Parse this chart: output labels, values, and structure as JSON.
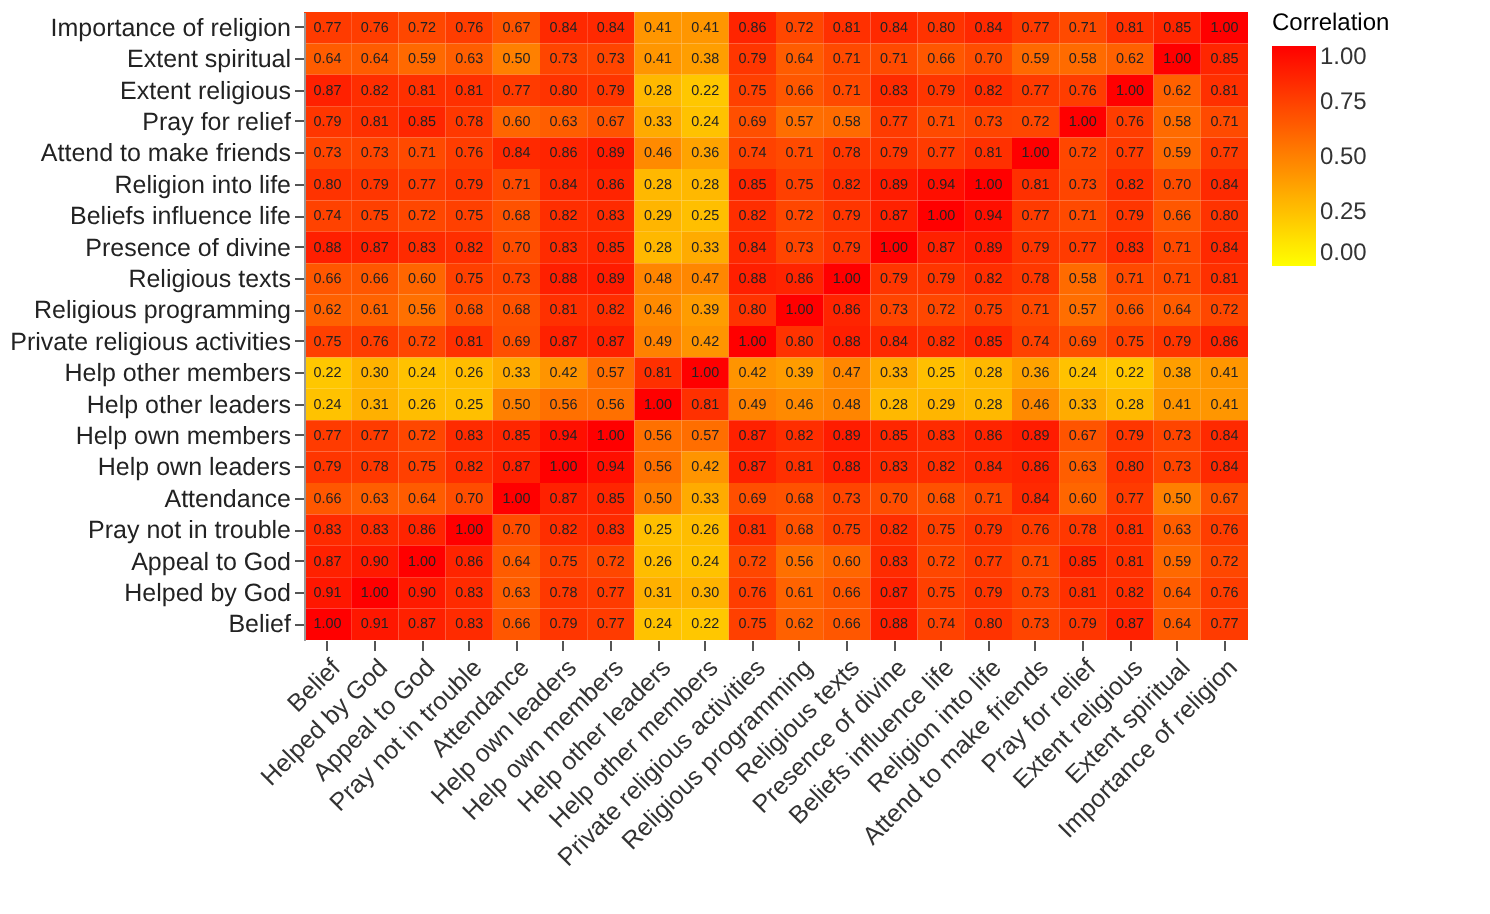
{
  "chart_data": {
    "type": "heatmap",
    "legend_title": "Correlation",
    "grid": false,
    "categories": [
      "Belief",
      "Helped by God",
      "Appeal to God",
      "Pray not in trouble",
      "Attendance",
      "Help own leaders",
      "Help own members",
      "Help other leaders",
      "Help other members",
      "Private religious activities",
      "Religious programming",
      "Religious texts",
      "Presence of divine",
      "Beliefs influence life",
      "Religion into life",
      "Attend to make friends",
      "Pray for relief",
      "Extent religious",
      "Extent spiritual",
      "Importance of religion"
    ],
    "y_categories": [
      "Importance of religion",
      "Extent spiritual",
      "Extent religious",
      "Pray for relief",
      "Attend to make friends",
      "Religion into life",
      "Beliefs influence life",
      "Presence of divine",
      "Religious texts",
      "Religious programming",
      "Private religious activities",
      "Help other members",
      "Help other leaders",
      "Help own members",
      "Help own leaders",
      "Attendance",
      "Pray not in trouble",
      "Appeal to God",
      "Helped by God",
      "Belief"
    ],
    "cells": [
      [
        0.77,
        0.76,
        0.72,
        0.76,
        0.67,
        0.84,
        0.84,
        0.41,
        0.41,
        0.86,
        0.72,
        0.81,
        0.84,
        0.8,
        0.84,
        0.77,
        0.71,
        0.81,
        0.85,
        1.0
      ],
      [
        0.64,
        0.64,
        0.59,
        0.63,
        0.5,
        0.73,
        0.73,
        0.41,
        0.38,
        0.79,
        0.64,
        0.71,
        0.71,
        0.66,
        0.7,
        0.59,
        0.58,
        0.62,
        1.0,
        0.85
      ],
      [
        0.87,
        0.82,
        0.81,
        0.81,
        0.77,
        0.8,
        0.79,
        0.28,
        0.22,
        0.75,
        0.66,
        0.71,
        0.83,
        0.79,
        0.82,
        0.77,
        0.76,
        1.0,
        0.62,
        0.81
      ],
      [
        0.79,
        0.81,
        0.85,
        0.78,
        0.6,
        0.63,
        0.67,
        0.33,
        0.24,
        0.69,
        0.57,
        0.58,
        0.77,
        0.71,
        0.73,
        0.72,
        1.0,
        0.76,
        0.58,
        0.71
      ],
      [
        0.73,
        0.73,
        0.71,
        0.76,
        0.84,
        0.86,
        0.89,
        0.46,
        0.36,
        0.74,
        0.71,
        0.78,
        0.79,
        0.77,
        0.81,
        1.0,
        0.72,
        0.77,
        0.59,
        0.77
      ],
      [
        0.8,
        0.79,
        0.77,
        0.79,
        0.71,
        0.84,
        0.86,
        0.28,
        0.28,
        0.85,
        0.75,
        0.82,
        0.89,
        0.94,
        1.0,
        0.81,
        0.73,
        0.82,
        0.7,
        0.84
      ],
      [
        0.74,
        0.75,
        0.72,
        0.75,
        0.68,
        0.82,
        0.83,
        0.29,
        0.25,
        0.82,
        0.72,
        0.79,
        0.87,
        1.0,
        0.94,
        0.77,
        0.71,
        0.79,
        0.66,
        0.8
      ],
      [
        0.88,
        0.87,
        0.83,
        0.82,
        0.7,
        0.83,
        0.85,
        0.28,
        0.33,
        0.84,
        0.73,
        0.79,
        1.0,
        0.87,
        0.89,
        0.79,
        0.77,
        0.83,
        0.71,
        0.84
      ],
      [
        0.66,
        0.66,
        0.6,
        0.75,
        0.73,
        0.88,
        0.89,
        0.48,
        0.47,
        0.88,
        0.86,
        1.0,
        0.79,
        0.79,
        0.82,
        0.78,
        0.58,
        0.71,
        0.71,
        0.81
      ],
      [
        0.62,
        0.61,
        0.56,
        0.68,
        0.68,
        0.81,
        0.82,
        0.46,
        0.39,
        0.8,
        1.0,
        0.86,
        0.73,
        0.72,
        0.75,
        0.71,
        0.57,
        0.66,
        0.64,
        0.72
      ],
      [
        0.75,
        0.76,
        0.72,
        0.81,
        0.69,
        0.87,
        0.87,
        0.49,
        0.42,
        1.0,
        0.8,
        0.88,
        0.84,
        0.82,
        0.85,
        0.74,
        0.69,
        0.75,
        0.79,
        0.86
      ],
      [
        0.22,
        0.3,
        0.24,
        0.26,
        0.33,
        0.42,
        0.57,
        0.81,
        1.0,
        0.42,
        0.39,
        0.47,
        0.33,
        0.25,
        0.28,
        0.36,
        0.24,
        0.22,
        0.38,
        0.41
      ],
      [
        0.24,
        0.31,
        0.26,
        0.25,
        0.5,
        0.56,
        0.56,
        1.0,
        0.81,
        0.49,
        0.46,
        0.48,
        0.28,
        0.29,
        0.28,
        0.46,
        0.33,
        0.28,
        0.41,
        0.41
      ],
      [
        0.77,
        0.77,
        0.72,
        0.83,
        0.85,
        0.94,
        1.0,
        0.56,
        0.57,
        0.87,
        0.82,
        0.89,
        0.85,
        0.83,
        0.86,
        0.89,
        0.67,
        0.79,
        0.73,
        0.84
      ],
      [
        0.79,
        0.78,
        0.75,
        0.82,
        0.87,
        1.0,
        0.94,
        0.56,
        0.42,
        0.87,
        0.81,
        0.88,
        0.83,
        0.82,
        0.84,
        0.86,
        0.63,
        0.8,
        0.73,
        0.84
      ],
      [
        0.66,
        0.63,
        0.64,
        0.7,
        1.0,
        0.87,
        0.85,
        0.5,
        0.33,
        0.69,
        0.68,
        0.73,
        0.7,
        0.68,
        0.71,
        0.84,
        0.6,
        0.77,
        0.5,
        0.67
      ],
      [
        0.83,
        0.83,
        0.86,
        1.0,
        0.7,
        0.82,
        0.83,
        0.25,
        0.26,
        0.81,
        0.68,
        0.75,
        0.82,
        0.75,
        0.79,
        0.76,
        0.78,
        0.81,
        0.63,
        0.76
      ],
      [
        0.87,
        0.9,
        1.0,
        0.86,
        0.64,
        0.75,
        0.72,
        0.26,
        0.24,
        0.72,
        0.56,
        0.6,
        0.83,
        0.72,
        0.77,
        0.71,
        0.85,
        0.81,
        0.59,
        0.72
      ],
      [
        0.91,
        1.0,
        0.9,
        0.83,
        0.63,
        0.78,
        0.77,
        0.31,
        0.3,
        0.76,
        0.61,
        0.66,
        0.87,
        0.75,
        0.79,
        0.73,
        0.81,
        0.82,
        0.64,
        0.76
      ],
      [
        1.0,
        0.91,
        0.87,
        0.83,
        0.66,
        0.79,
        0.77,
        0.24,
        0.22,
        0.75,
        0.62,
        0.66,
        0.88,
        0.74,
        0.8,
        0.73,
        0.79,
        0.87,
        0.64,
        0.77
      ]
    ],
    "cell_labels": [
      [
        "0.77",
        "0.76",
        "0.72",
        "0.76",
        "0.67",
        "0.84",
        "0.84",
        "0.41",
        "0.41",
        "0.86",
        "0.72",
        "0.81",
        "0.84",
        "0.80",
        "0.84",
        "0.77",
        "0.71",
        "0.81",
        "0.85",
        "1.00"
      ],
      [
        "0.64",
        "0.64",
        "0.59",
        "0.63",
        "0.50",
        "0.73",
        "0.73",
        "0.41",
        "0.38",
        "0.79",
        "0.64",
        "0.71",
        "0.71",
        "0.66",
        "0.70",
        "0.59",
        "0.58",
        "0.62",
        "1.00",
        "0.85"
      ],
      [
        "0.87",
        "0.82",
        "0.81",
        "0.81",
        "0.77",
        "0.80",
        "0.79",
        "0.28",
        "0.22",
        "0.75",
        "0.66",
        "0.71",
        "0.83",
        "0.79",
        "0.82",
        "0.77",
        "0.76",
        "1.00",
        "0.62",
        "0.81"
      ],
      [
        "0.79",
        "0.81",
        "0.85",
        "0.78",
        "0.60",
        "0.63",
        "0.67",
        "0.33",
        "0.24",
        "0.69",
        "0.57",
        "0.58",
        "0.77",
        "0.71",
        "0.73",
        "0.72",
        "1.00",
        "0.76",
        "0.58",
        "0.71"
      ],
      [
        "0.73",
        "0.73",
        "0.71",
        "0.76",
        "0.84",
        "0.86",
        "0.89",
        "0.46",
        "0.36",
        "0.74",
        "0.71",
        "0.78",
        "0.79",
        "0.77",
        "0.81",
        "1.00",
        "0.72",
        "0.77",
        "0.59",
        "0.77"
      ],
      [
        "0.80",
        "0.79",
        "0.77",
        "0.79",
        "0.71",
        "0.84",
        "0.86",
        "0.28",
        "0.28",
        "0.85",
        "0.75",
        "0.82",
        "0.89",
        "0.94",
        "1.00",
        "0.81",
        "0.73",
        "0.82",
        "0.70",
        "0.84"
      ],
      [
        "0.74",
        "0.75",
        "0.72",
        "0.75",
        "0.68",
        "0.82",
        "0.83",
        "0.29",
        "0.25",
        "0.82",
        "0.72",
        "0.79",
        "0.87",
        "1.00",
        "0.94",
        "0.77",
        "0.71",
        "0.79",
        "0.66",
        "0.80"
      ],
      [
        "0.88",
        "0.87",
        "0.83",
        "0.82",
        "0.70",
        "0.83",
        "0.85",
        "0.28",
        "0.33",
        "0.84",
        "0.73",
        "0.79",
        "1.00",
        "0.87",
        "0.89",
        "0.79",
        "0.77",
        "0.83",
        "0.71",
        "0.84"
      ],
      [
        "0.66",
        "0.66",
        "0.60",
        "0.75",
        "0.73",
        "0.88",
        "0.89",
        "0.48",
        "0.47",
        "0.88",
        "0.86",
        "1.00",
        "0.79",
        "0.79",
        "0.82",
        "0.78",
        "0.58",
        "0.71",
        "0.71",
        "0.81"
      ],
      [
        "0.62",
        "0.61",
        "0.56",
        "0.68",
        "0.68",
        "0.81",
        "0.82",
        "0.46",
        "0.39",
        "0.80",
        "1.00",
        "0.86",
        "0.73",
        "0.72",
        "0.75",
        "0.71",
        "0.57",
        "0.66",
        "0.64",
        "0.72"
      ],
      [
        "0.75",
        "0.76",
        "0.72",
        "0.81",
        "0.69",
        "0.87",
        "0.87",
        "0.49",
        "0.42",
        "1.00",
        "0.80",
        "0.88",
        "0.84",
        "0.82",
        "0.85",
        "0.74",
        "0.69",
        "0.75",
        "0.79",
        "0.86"
      ],
      [
        "0.22",
        "0.30",
        "0.24",
        "0.26",
        "0.33",
        "0.42",
        "0.57",
        "0.81",
        "1.00",
        "0.42",
        "0.39",
        "0.47",
        "0.33",
        "0.25",
        "0.28",
        "0.36",
        "0.24",
        "0.22",
        "0.38",
        "0.41"
      ],
      [
        "0.24",
        "0.31",
        "0.26",
        "0.25",
        "0.50",
        "0.56",
        "0.56",
        "1.00",
        "0.81",
        "0.49",
        "0.46",
        "0.48",
        "0.28",
        "0.29",
        "0.28",
        "0.46",
        "0.33",
        "0.28",
        "0.41",
        "0.41"
      ],
      [
        "0.77",
        "0.77",
        "0.72",
        "0.83",
        "0.85",
        "0.94",
        "1.00",
        "0.56",
        "0.57",
        "0.87",
        "0.82",
        "0.89",
        "0.85",
        "0.83",
        "0.86",
        "0.89",
        "0.67",
        "0.79",
        "0.73",
        "0.84"
      ],
      [
        "0.79",
        "0.78",
        "0.75",
        "0.82",
        "0.87",
        "1.00",
        "0.94",
        "0.56",
        "0.42",
        "0.87",
        "0.81",
        "0.88",
        "0.83",
        "0.82",
        "0.84",
        "0.86",
        "0.63",
        "0.80",
        "0.73",
        "0.84"
      ],
      [
        "0.66",
        "0.63",
        "0.64",
        "0.70",
        "1.00",
        "0.87",
        "0.85",
        "0.50",
        "0.33",
        "0.69",
        "0.68",
        "0.73",
        "0.70",
        "0.68",
        "0.71",
        "0.84",
        "0.60",
        "0.77",
        "0.50",
        "0.67"
      ],
      [
        "0.83",
        "0.83",
        "0.86",
        "1.00",
        "0.70",
        "0.82",
        "0.83",
        "0.25",
        "0.26",
        "0.81",
        "0.68",
        "0.75",
        "0.82",
        "0.75",
        "0.79",
        "0.76",
        "0.78",
        "0.81",
        "0.63",
        "0.76"
      ],
      [
        "0.87",
        "0.90",
        "1.00",
        "0.86",
        "0.64",
        "0.75",
        "0.72",
        "0.26",
        "0.24",
        "0.72",
        "0.56",
        "0.60",
        "0.83",
        "0.72",
        "0.77",
        "0.71",
        "0.85",
        "0.81",
        "0.59",
        "0.72"
      ],
      [
        "0.91",
        "1.00",
        "0.90",
        "0.83",
        "0.63",
        "0.78",
        "0.77",
        "0.31",
        "0.30",
        "0.76",
        "0.61",
        "0.66",
        "0.87",
        "0.75",
        "0.79",
        "0.73",
        "0.81",
        "0.82",
        "0.64",
        "0.76"
      ],
      [
        "1.00",
        "0.91",
        "0.87",
        "0.83",
        "0.66",
        "0.79",
        "0.77",
        "0.24",
        "0.22",
        "0.75",
        "0.62",
        "0.66",
        "0.88",
        "0.74",
        "0.80",
        "0.73",
        "0.79",
        "0.87",
        "0.64",
        "0.77"
      ]
    ],
    "clim": [
      0,
      1
    ],
    "cticks": [
      {
        "value": 0,
        "label": "0.00"
      },
      {
        "value": 0.25,
        "label": "0.25"
      },
      {
        "value": 0.5,
        "label": "0.50"
      },
      {
        "value": 0.75,
        "label": "0.75"
      },
      {
        "value": 1,
        "label": "1.00"
      }
    ]
  }
}
